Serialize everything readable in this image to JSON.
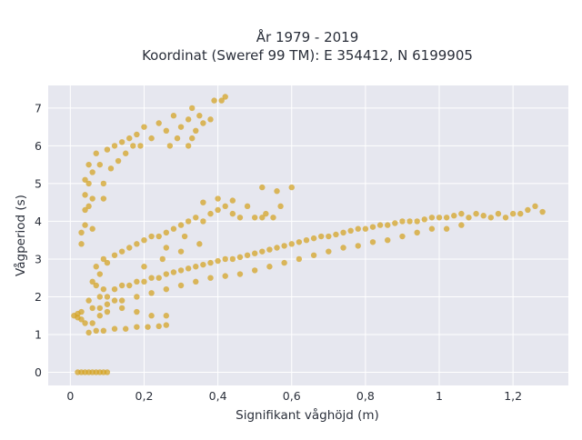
{
  "chart_data": {
    "type": "scatter",
    "title_lines": [
      "År 1979 - 2019",
      "Koordinat (Sweref 99 TM): E 354412, N 6199905"
    ],
    "xlabel": "Signifikant våghöjd (m)",
    "ylabel": "Vågperiod (s)",
    "xlim": [
      -0.06,
      1.35
    ],
    "ylim": [
      -0.35,
      7.6
    ],
    "x_ticks": [
      {
        "value": 0,
        "label": "0"
      },
      {
        "value": 0.2,
        "label": "0,2"
      },
      {
        "value": 0.4,
        "label": "0,4"
      },
      {
        "value": 0.6,
        "label": "0,6"
      },
      {
        "value": 0.8,
        "label": "0,8"
      },
      {
        "value": 1.0,
        "label": "1"
      },
      {
        "value": 1.2,
        "label": "1,2"
      }
    ],
    "y_ticks": [
      {
        "value": 0,
        "label": "0"
      },
      {
        "value": 1,
        "label": "1"
      },
      {
        "value": 2,
        "label": "2"
      },
      {
        "value": 3,
        "label": "3"
      },
      {
        "value": 4,
        "label": "4"
      },
      {
        "value": 5,
        "label": "5"
      },
      {
        "value": 6,
        "label": "6"
      },
      {
        "value": 7,
        "label": "7"
      }
    ],
    "grid": true,
    "background": "#e6e7ef",
    "marker_color": "#d4a21f",
    "series": [
      {
        "points": [
          [
            0.02,
            0.0
          ],
          [
            0.03,
            0.0
          ],
          [
            0.04,
            0.0
          ],
          [
            0.05,
            0.0
          ],
          [
            0.06,
            0.0
          ],
          [
            0.07,
            0.0
          ],
          [
            0.08,
            0.0
          ],
          [
            0.09,
            0.0
          ],
          [
            0.1,
            0.0
          ],
          [
            0.01,
            1.5
          ],
          [
            0.02,
            1.45
          ],
          [
            0.03,
            1.4
          ],
          [
            0.04,
            1.3
          ],
          [
            0.03,
            1.6
          ],
          [
            0.02,
            1.55
          ],
          [
            0.05,
            1.05
          ],
          [
            0.07,
            1.1
          ],
          [
            0.09,
            1.1
          ],
          [
            0.12,
            1.15
          ],
          [
            0.15,
            1.15
          ],
          [
            0.18,
            1.2
          ],
          [
            0.21,
            1.2
          ],
          [
            0.24,
            1.22
          ],
          [
            0.26,
            1.25
          ],
          [
            0.05,
            1.9
          ],
          [
            0.06,
            1.7
          ],
          [
            0.07,
            2.3
          ],
          [
            0.08,
            2.6
          ],
          [
            0.08,
            1.5
          ],
          [
            0.06,
            1.3
          ],
          [
            0.1,
            1.6
          ],
          [
            0.14,
            1.7
          ],
          [
            0.18,
            1.6
          ],
          [
            0.22,
            1.5
          ],
          [
            0.26,
            1.5
          ],
          [
            0.03,
            3.4
          ],
          [
            0.03,
            3.7
          ],
          [
            0.04,
            3.9
          ],
          [
            0.04,
            4.3
          ],
          [
            0.04,
            4.7
          ],
          [
            0.04,
            5.1
          ],
          [
            0.05,
            5.5
          ],
          [
            0.05,
            5.0
          ],
          [
            0.05,
            4.4
          ],
          [
            0.06,
            3.8
          ],
          [
            0.06,
            4.6
          ],
          [
            0.06,
            5.3
          ],
          [
            0.07,
            5.8
          ],
          [
            0.08,
            5.5
          ],
          [
            0.09,
            5.0
          ],
          [
            0.09,
            4.6
          ],
          [
            0.1,
            5.9
          ],
          [
            0.11,
            5.4
          ],
          [
            0.12,
            6.0
          ],
          [
            0.13,
            5.6
          ],
          [
            0.14,
            6.1
          ],
          [
            0.15,
            5.8
          ],
          [
            0.16,
            6.2
          ],
          [
            0.17,
            6.0
          ],
          [
            0.18,
            6.3
          ],
          [
            0.19,
            6.0
          ],
          [
            0.2,
            6.5
          ],
          [
            0.22,
            6.2
          ],
          [
            0.24,
            6.6
          ],
          [
            0.26,
            6.4
          ],
          [
            0.27,
            6.0
          ],
          [
            0.28,
            6.8
          ],
          [
            0.3,
            6.5
          ],
          [
            0.32,
            6.7
          ],
          [
            0.34,
            6.4
          ],
          [
            0.33,
            6.2
          ],
          [
            0.35,
            6.8
          ],
          [
            0.36,
            6.6
          ],
          [
            0.33,
            7.0
          ],
          [
            0.39,
            7.2
          ],
          [
            0.41,
            7.2
          ],
          [
            0.42,
            7.3
          ],
          [
            0.38,
            6.7
          ],
          [
            0.32,
            6.0
          ],
          [
            0.29,
            6.2
          ],
          [
            0.06,
            2.4
          ],
          [
            0.07,
            2.8
          ],
          [
            0.09,
            3.0
          ],
          [
            0.1,
            2.9
          ],
          [
            0.12,
            3.1
          ],
          [
            0.14,
            3.2
          ],
          [
            0.16,
            3.3
          ],
          [
            0.18,
            3.4
          ],
          [
            0.2,
            3.5
          ],
          [
            0.22,
            3.6
          ],
          [
            0.24,
            3.6
          ],
          [
            0.26,
            3.7
          ],
          [
            0.28,
            3.8
          ],
          [
            0.3,
            3.9
          ],
          [
            0.32,
            4.0
          ],
          [
            0.34,
            4.1
          ],
          [
            0.36,
            4.0
          ],
          [
            0.38,
            4.2
          ],
          [
            0.4,
            4.3
          ],
          [
            0.42,
            4.4
          ],
          [
            0.44,
            4.2
          ],
          [
            0.46,
            4.1
          ],
          [
            0.5,
            4.1
          ],
          [
            0.53,
            4.2
          ],
          [
            0.57,
            4.4
          ],
          [
            0.36,
            4.5
          ],
          [
            0.4,
            4.6
          ],
          [
            0.44,
            4.55
          ],
          [
            0.48,
            4.4
          ],
          [
            0.52,
            4.1
          ],
          [
            0.55,
            4.1
          ],
          [
            0.52,
            4.9
          ],
          [
            0.56,
            4.8
          ],
          [
            0.6,
            4.9
          ],
          [
            0.2,
            2.8
          ],
          [
            0.25,
            3.0
          ],
          [
            0.3,
            3.2
          ],
          [
            0.35,
            3.4
          ],
          [
            0.26,
            3.3
          ],
          [
            0.31,
            3.6
          ],
          [
            0.1,
            2.0
          ],
          [
            0.12,
            2.2
          ],
          [
            0.14,
            2.3
          ],
          [
            0.16,
            2.3
          ],
          [
            0.18,
            2.4
          ],
          [
            0.2,
            2.4
          ],
          [
            0.22,
            2.5
          ],
          [
            0.24,
            2.5
          ],
          [
            0.26,
            2.6
          ],
          [
            0.28,
            2.65
          ],
          [
            0.3,
            2.7
          ],
          [
            0.32,
            2.75
          ],
          [
            0.34,
            2.8
          ],
          [
            0.36,
            2.85
          ],
          [
            0.38,
            2.9
          ],
          [
            0.4,
            2.95
          ],
          [
            0.42,
            3.0
          ],
          [
            0.44,
            3.0
          ],
          [
            0.46,
            3.05
          ],
          [
            0.48,
            3.1
          ],
          [
            0.5,
            3.15
          ],
          [
            0.52,
            3.2
          ],
          [
            0.54,
            3.25
          ],
          [
            0.56,
            3.3
          ],
          [
            0.58,
            3.35
          ],
          [
            0.6,
            3.4
          ],
          [
            0.62,
            3.45
          ],
          [
            0.64,
            3.5
          ],
          [
            0.66,
            3.55
          ],
          [
            0.68,
            3.6
          ],
          [
            0.7,
            3.6
          ],
          [
            0.72,
            3.65
          ],
          [
            0.74,
            3.7
          ],
          [
            0.76,
            3.75
          ],
          [
            0.78,
            3.8
          ],
          [
            0.8,
            3.8
          ],
          [
            0.82,
            3.85
          ],
          [
            0.84,
            3.9
          ],
          [
            0.86,
            3.9
          ],
          [
            0.88,
            3.95
          ],
          [
            0.9,
            4.0
          ],
          [
            0.92,
            4.0
          ],
          [
            0.94,
            4.0
          ],
          [
            0.96,
            4.05
          ],
          [
            0.98,
            4.1
          ],
          [
            1.0,
            4.1
          ],
          [
            1.02,
            4.1
          ],
          [
            1.04,
            4.15
          ],
          [
            1.06,
            4.2
          ],
          [
            1.08,
            4.1
          ],
          [
            1.1,
            4.2
          ],
          [
            1.12,
            4.15
          ],
          [
            1.14,
            4.1
          ],
          [
            1.16,
            4.2
          ],
          [
            1.18,
            4.1
          ],
          [
            1.2,
            4.2
          ],
          [
            1.22,
            4.2
          ],
          [
            1.24,
            4.3
          ],
          [
            1.26,
            4.4
          ],
          [
            1.28,
            4.25
          ],
          [
            0.14,
            1.9
          ],
          [
            0.18,
            2.0
          ],
          [
            0.22,
            2.1
          ],
          [
            0.26,
            2.2
          ],
          [
            0.3,
            2.3
          ],
          [
            0.34,
            2.4
          ],
          [
            0.38,
            2.5
          ],
          [
            0.42,
            2.55
          ],
          [
            0.46,
            2.6
          ],
          [
            0.5,
            2.7
          ],
          [
            0.54,
            2.8
          ],
          [
            0.58,
            2.9
          ],
          [
            0.62,
            3.0
          ],
          [
            0.66,
            3.1
          ],
          [
            0.7,
            3.2
          ],
          [
            0.74,
            3.3
          ],
          [
            0.78,
            3.35
          ],
          [
            0.82,
            3.45
          ],
          [
            0.86,
            3.5
          ],
          [
            0.9,
            3.6
          ],
          [
            0.94,
            3.7
          ],
          [
            0.98,
            3.8
          ],
          [
            1.02,
            3.8
          ],
          [
            1.06,
            3.9
          ],
          [
            0.1,
            1.8
          ],
          [
            0.12,
            1.9
          ],
          [
            0.08,
            1.7
          ],
          [
            0.08,
            2.0
          ],
          [
            0.09,
            2.2
          ]
        ]
      }
    ]
  }
}
